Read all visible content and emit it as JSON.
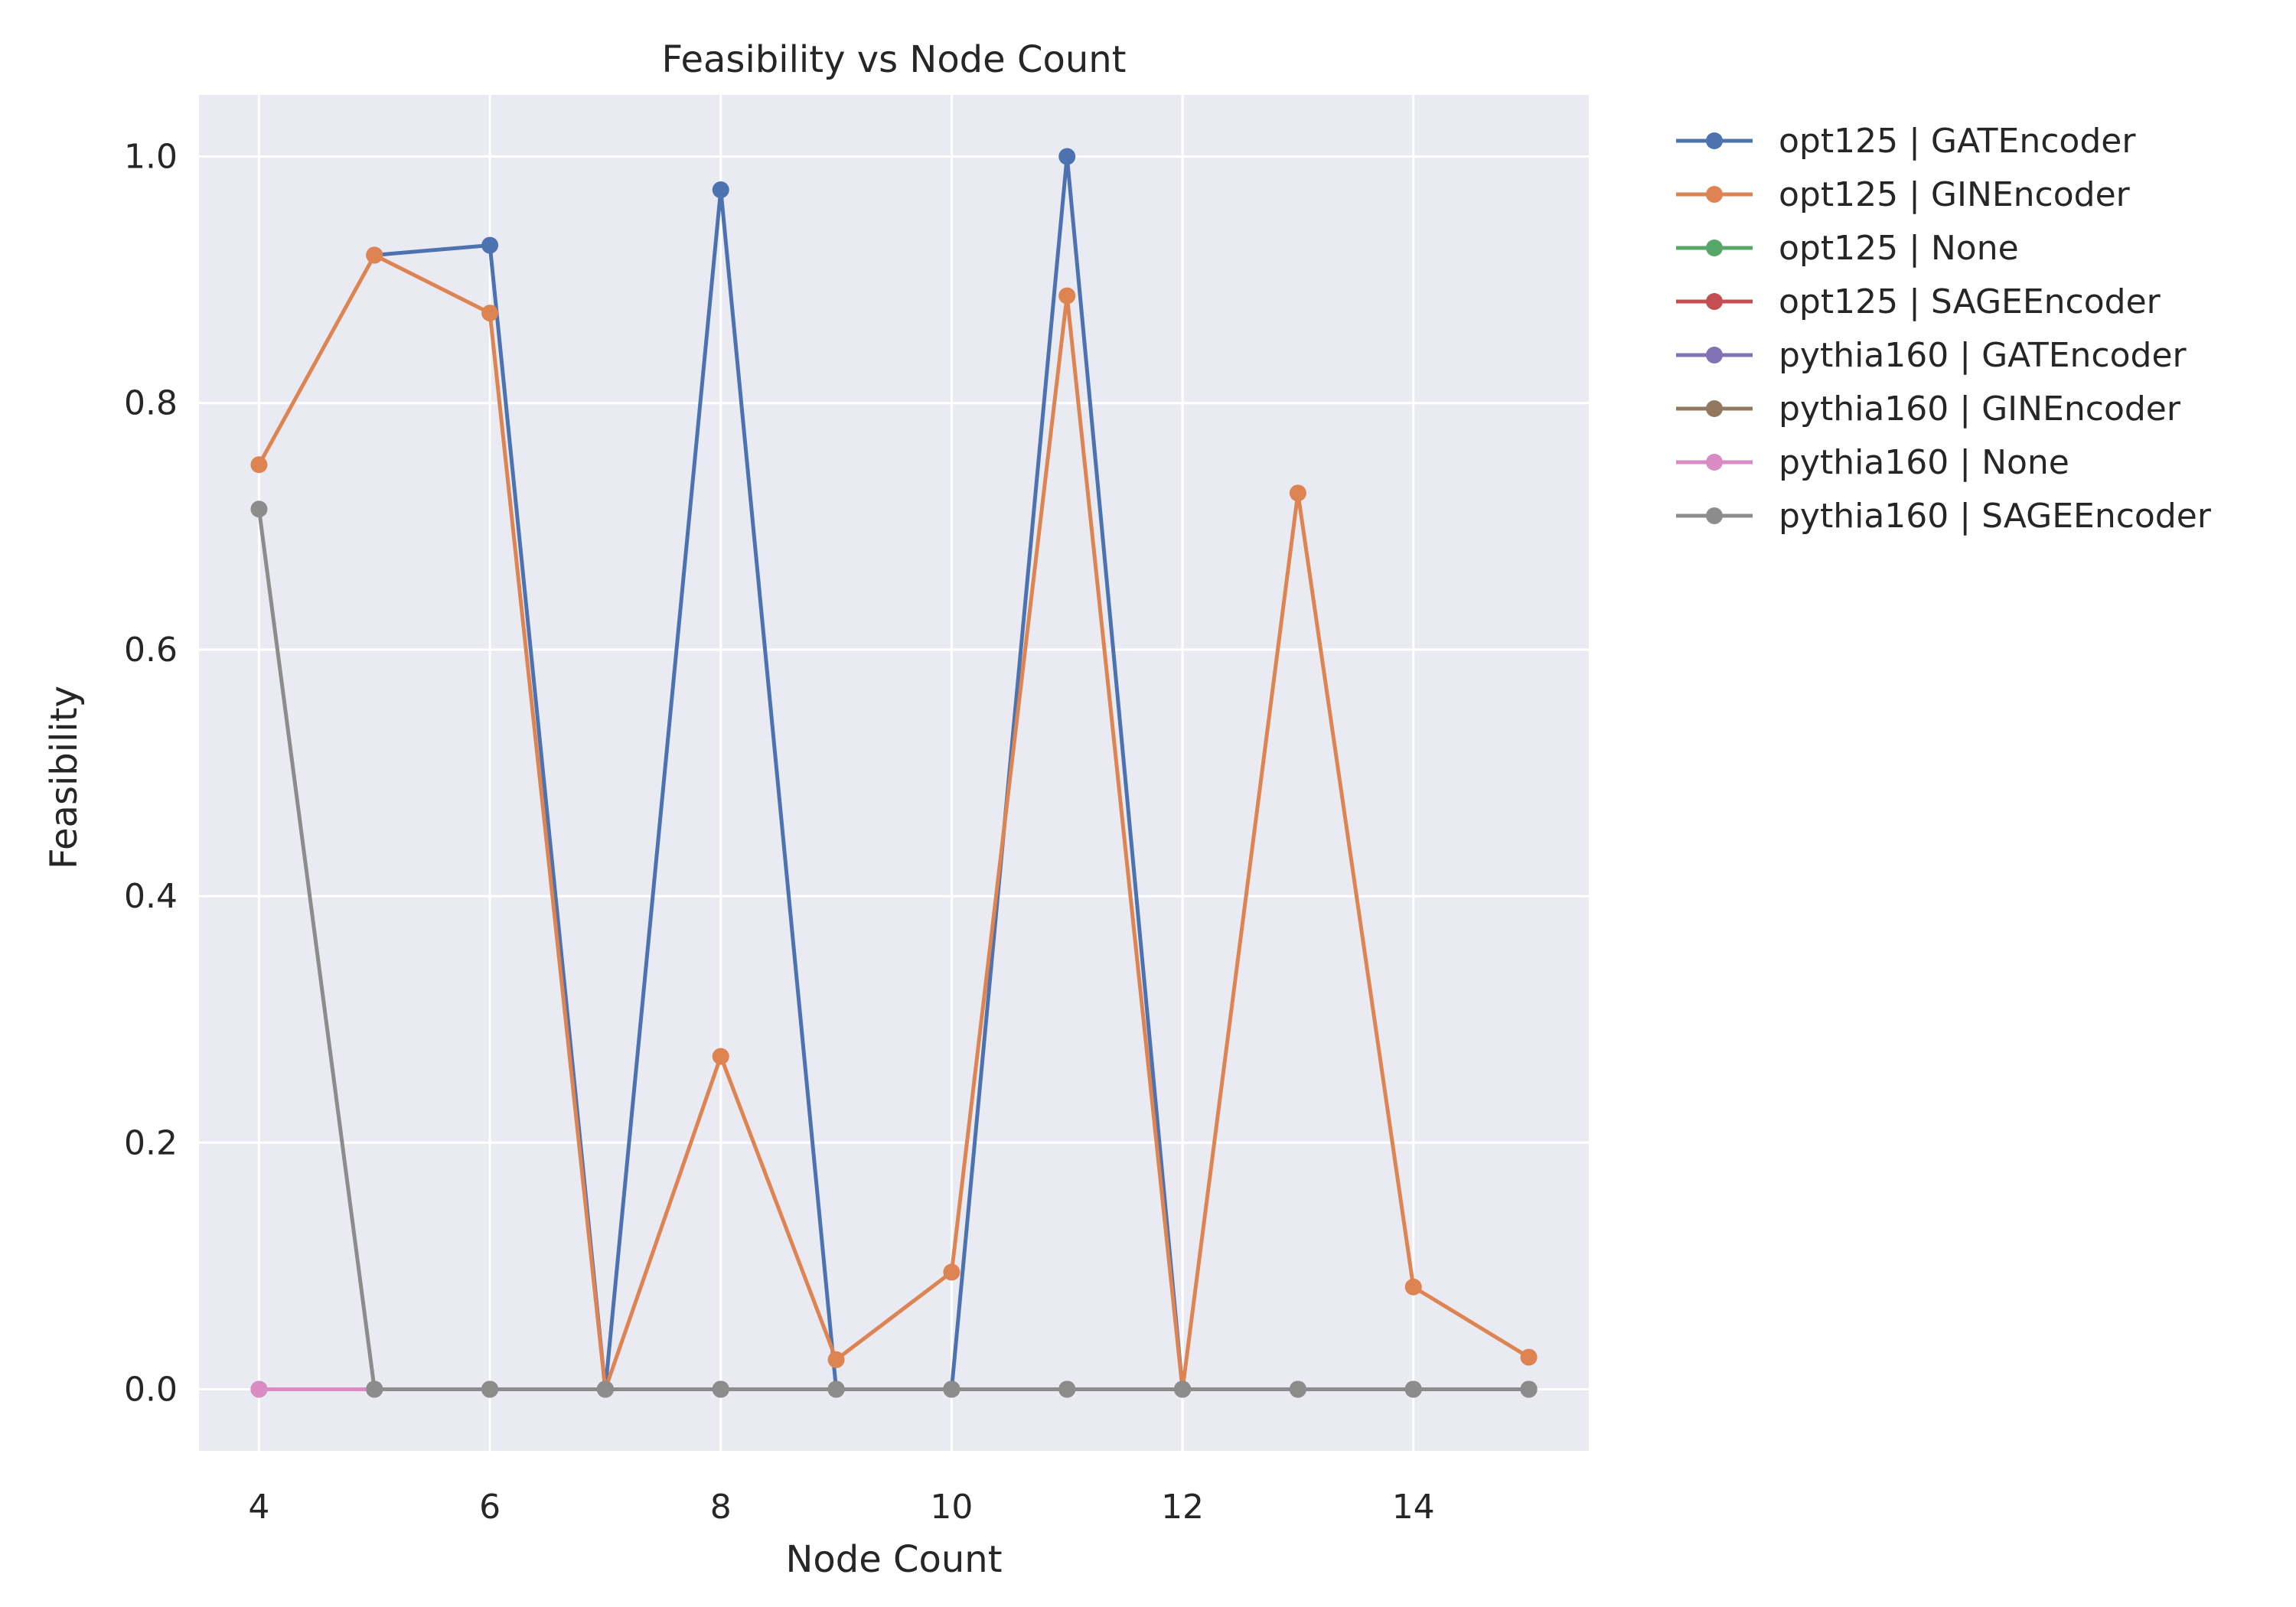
{
  "chart_data": {
    "type": "line",
    "title": "Feasibility vs Node Count",
    "xlabel": "Node Count",
    "ylabel": "Feasibility",
    "xlim": [
      3.48,
      15.52
    ],
    "ylim": [
      -0.05,
      1.05
    ],
    "xticks": [
      4,
      6,
      8,
      10,
      12,
      14
    ],
    "yticks": [
      0.0,
      0.2,
      0.4,
      0.6,
      0.8,
      1.0
    ],
    "xtick_labels": [
      "4",
      "6",
      "8",
      "10",
      "12",
      "14"
    ],
    "ytick_labels": [
      "0.0",
      "0.2",
      "0.4",
      "0.6",
      "0.8",
      "1.0"
    ],
    "grid": true,
    "legend_position": "outside-right-top",
    "x": [
      4,
      5,
      6,
      7,
      8,
      9,
      10,
      11,
      12,
      13,
      14,
      15
    ],
    "series": [
      {
        "name": "opt125 | GATEncoder",
        "color": "#4c72b0",
        "x": [
          5,
          6,
          7,
          8,
          9,
          10,
          11,
          12
        ],
        "values": [
          0.92,
          0.928,
          0.0,
          0.973,
          0.0,
          0.0,
          1.0,
          0.0
        ]
      },
      {
        "name": "opt125 | GINEncoder",
        "color": "#dd8452",
        "x": [
          4,
          5,
          6,
          7,
          8,
          9,
          10,
          11,
          12,
          13,
          14,
          15
        ],
        "values": [
          0.75,
          0.92,
          0.873,
          0.0,
          0.27,
          0.024,
          0.095,
          0.887,
          0.0,
          0.727,
          0.083,
          0.026
        ]
      },
      {
        "name": "opt125 | None",
        "color": "#55a868",
        "x": [
          4,
          5
        ],
        "values": [
          0.0,
          0.0
        ]
      },
      {
        "name": "opt125 | SAGEEncoder",
        "color": "#c44e52",
        "x": [
          5,
          6,
          7,
          8,
          9,
          10,
          11,
          12,
          13,
          14,
          15
        ],
        "values": [
          0.0,
          0.0,
          0.0,
          0.0,
          0.0,
          0.0,
          0.0,
          0.0,
          0.0,
          0.0,
          0.0
        ]
      },
      {
        "name": "pythia160 | GATEncoder",
        "color": "#8172b3",
        "x": [
          5,
          6,
          7,
          8,
          9,
          10,
          11,
          12,
          13,
          14,
          15
        ],
        "values": [
          0.0,
          0.0,
          0.0,
          0.0,
          0.0,
          0.0,
          0.0,
          0.0,
          0.0,
          0.0,
          0.0
        ]
      },
      {
        "name": "pythia160 | GINEncoder",
        "color": "#937860",
        "x": [
          5,
          6,
          7,
          8,
          9,
          10,
          11,
          12,
          13,
          14,
          15
        ],
        "values": [
          0.0,
          0.0,
          0.0,
          0.0,
          0.0,
          0.0,
          0.0,
          0.0,
          0.0,
          0.0,
          0.0
        ]
      },
      {
        "name": "pythia160 | None",
        "color": "#da8bc3",
        "x": [
          4,
          5
        ],
        "values": [
          0.0,
          0.0
        ]
      },
      {
        "name": "pythia160 | SAGEEncoder",
        "color": "#8c8c8c",
        "x": [
          4,
          5,
          6,
          7,
          8,
          9,
          10,
          11,
          12,
          13,
          14,
          15
        ],
        "values": [
          0.714,
          0.0,
          0.0,
          0.0,
          0.0,
          0.0,
          0.0,
          0.0,
          0.0,
          0.0,
          0.0,
          0.0
        ]
      }
    ]
  }
}
